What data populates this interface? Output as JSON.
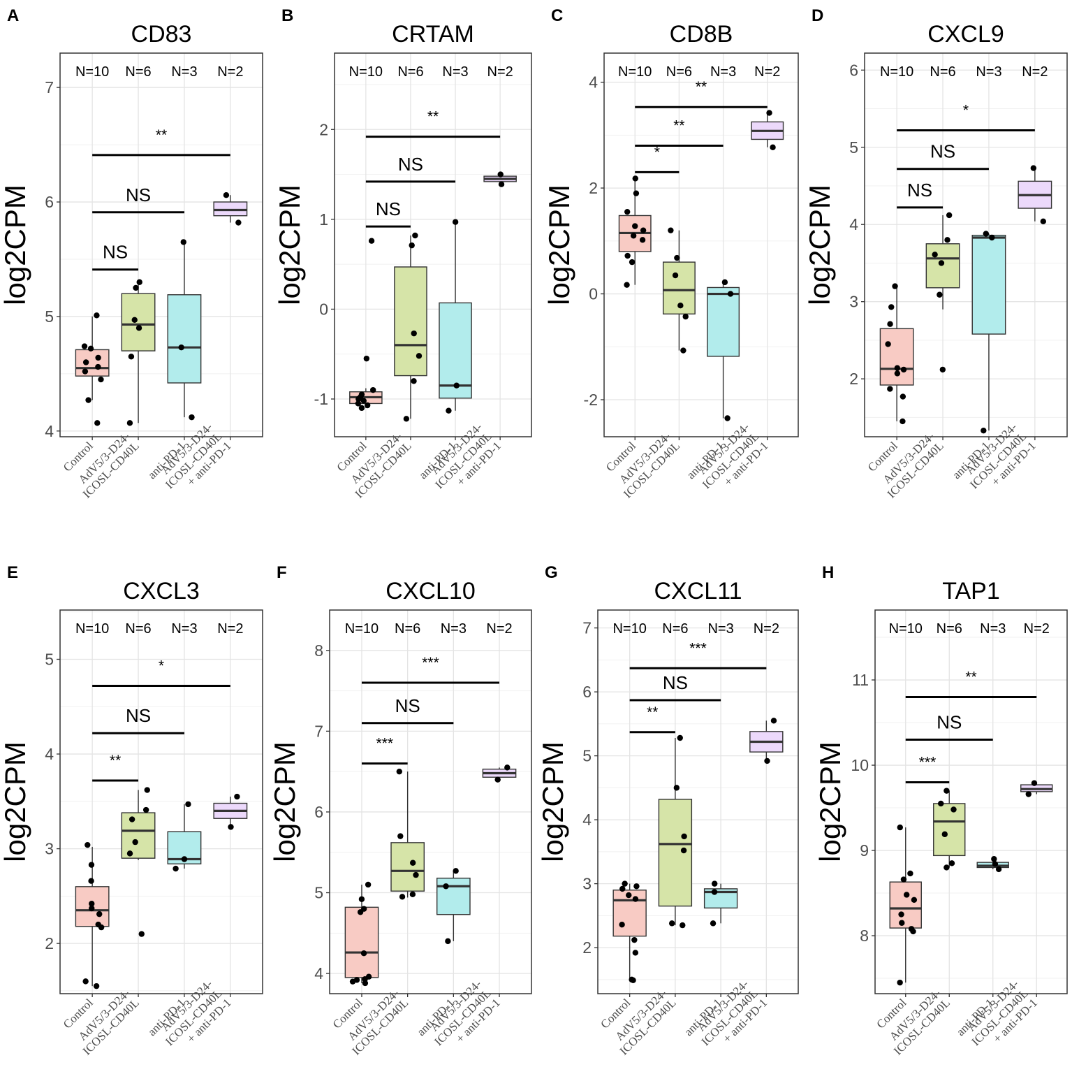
{
  "y_axis_label": "log2CPM",
  "groups": [
    "Control",
    "AdV5/3-D24-ICOSL-CD40L",
    "anti-PD-1",
    "AdV5/3-D24-ICOSL-CD40L + anti-PD-1"
  ],
  "group_label_lines": [
    [
      "Control"
    ],
    [
      "AdV5/3-D24-",
      "ICOSL-CD40L"
    ],
    [
      "anti-PD-1"
    ],
    [
      "AdV5/3-D24-",
      "ICOSL-CD40L",
      "+ anti-PD-1"
    ]
  ],
  "group_colors": [
    "#f8cbc4",
    "#d6e4a8",
    "#b2ecec",
    "#ecd9fb"
  ],
  "n_labels": [
    "N=10",
    "N=6",
    "N=3",
    "N=2"
  ],
  "chart_data": [
    {
      "type": "box",
      "panel_label": "A",
      "title": "CD83",
      "ylim": [
        3.95,
        7.3
      ],
      "yticks": [
        4,
        5,
        6,
        7
      ],
      "boxes": [
        {
          "q1": 4.48,
          "median": 4.55,
          "q3": 4.71,
          "wmin": 4.27,
          "wmax": 5.0
        },
        {
          "q1": 4.7,
          "median": 4.93,
          "q3": 5.2,
          "wmin": 4.07,
          "wmax": 5.3
        },
        {
          "q1": 4.42,
          "median": 4.73,
          "q3": 5.19,
          "wmin": 4.12,
          "wmax": 5.65
        },
        {
          "q1": 5.88,
          "median": 5.93,
          "q3": 6.0,
          "wmin": 5.82,
          "wmax": 6.06
        }
      ],
      "points": [
        [
          5.01,
          4.74,
          4.72,
          4.64,
          4.6,
          4.56,
          4.52,
          4.45,
          4.27,
          4.07
        ],
        [
          5.3,
          5.25,
          4.97,
          4.9,
          4.65,
          4.07
        ],
        [
          5.65,
          4.73,
          4.12
        ],
        [
          6.06,
          5.82
        ]
      ],
      "comparisons": [
        {
          "from": 0,
          "to": 1,
          "y": 5.41,
          "label": "NS"
        },
        {
          "from": 0,
          "to": 2,
          "y": 5.91,
          "label": "NS"
        },
        {
          "from": 0,
          "to": 3,
          "y": 6.41,
          "label": "**"
        }
      ]
    },
    {
      "type": "box",
      "panel_label": "B",
      "title": "CRTAM",
      "ylim": [
        -1.42,
        2.85
      ],
      "yticks": [
        -1,
        0,
        1,
        2
      ],
      "boxes": [
        {
          "q1": -1.05,
          "median": -0.98,
          "q3": -0.92,
          "wmin": -1.1,
          "wmax": -0.88
        },
        {
          "q1": -0.74,
          "median": -0.4,
          "q3": 0.47,
          "wmin": -1.22,
          "wmax": 0.82
        },
        {
          "q1": -0.99,
          "median": -0.85,
          "q3": 0.07,
          "wmin": -1.13,
          "wmax": 0.97
        },
        {
          "q1": 1.42,
          "median": 1.45,
          "q3": 1.48,
          "wmin": 1.39,
          "wmax": 1.5
        }
      ],
      "points": [
        [
          0.76,
          -0.55,
          -0.9,
          -0.95,
          -0.98,
          -1.0,
          -1.02,
          -1.05,
          -1.07,
          -1.1
        ],
        [
          0.82,
          0.71,
          -0.27,
          -0.52,
          -0.8,
          -1.22
        ],
        [
          0.97,
          -0.85,
          -1.13
        ],
        [
          1.5,
          1.39
        ]
      ],
      "comparisons": [
        {
          "from": 0,
          "to": 1,
          "y": 0.92,
          "label": "NS"
        },
        {
          "from": 0,
          "to": 2,
          "y": 1.42,
          "label": "NS"
        },
        {
          "from": 0,
          "to": 3,
          "y": 1.92,
          "label": "**"
        }
      ]
    },
    {
      "type": "box",
      "panel_label": "C",
      "title": "CD8B",
      "ylim": [
        -2.7,
        4.55
      ],
      "yticks": [
        -2,
        0,
        2,
        4
      ],
      "boxes": [
        {
          "q1": 0.8,
          "median": 1.15,
          "q3": 1.48,
          "wmin": 0.17,
          "wmax": 2.18
        },
        {
          "q1": -0.38,
          "median": 0.07,
          "q3": 0.6,
          "wmin": -1.07,
          "wmax": 1.2
        },
        {
          "q1": -1.18,
          "median": 0.0,
          "q3": 0.12,
          "wmin": -2.35,
          "wmax": 0.22
        },
        {
          "q1": 2.92,
          "median": 3.08,
          "q3": 3.25,
          "wmin": 2.77,
          "wmax": 3.42
        }
      ],
      "points": [
        [
          2.18,
          1.9,
          1.55,
          1.28,
          1.2,
          1.1,
          1.02,
          0.72,
          0.6,
          0.17
        ],
        [
          1.2,
          0.68,
          0.35,
          -0.22,
          -0.43,
          -1.07
        ],
        [
          0.22,
          0.0,
          -2.35
        ],
        [
          3.42,
          2.77
        ]
      ],
      "comparisons": [
        {
          "from": 0,
          "to": 1,
          "y": 2.3,
          "label": "*"
        },
        {
          "from": 0,
          "to": 2,
          "y": 2.8,
          "label": "**"
        },
        {
          "from": 0,
          "to": 3,
          "y": 3.53,
          "label": "**"
        }
      ]
    },
    {
      "type": "box",
      "panel_label": "D",
      "title": "CXCL9",
      "ylim": [
        1.25,
        6.22
      ],
      "yticks": [
        2,
        3,
        4,
        5,
        6
      ],
      "boxes": [
        {
          "q1": 1.92,
          "median": 2.13,
          "q3": 2.65,
          "wmin": 1.45,
          "wmax": 3.2
        },
        {
          "q1": 3.18,
          "median": 3.56,
          "q3": 3.75,
          "wmin": 2.9,
          "wmax": 4.12
        },
        {
          "q1": 2.58,
          "median": 3.83,
          "q3": 3.86,
          "wmin": 1.33,
          "wmax": 3.88
        },
        {
          "q1": 4.21,
          "median": 4.38,
          "q3": 4.56,
          "wmin": 4.04,
          "wmax": 4.73
        }
      ],
      "points": [
        [
          3.2,
          2.93,
          2.71,
          2.45,
          2.14,
          2.12,
          2.07,
          1.87,
          1.77,
          1.45
        ],
        [
          4.12,
          3.8,
          3.61,
          3.5,
          3.09,
          2.12
        ],
        [
          3.88,
          3.83,
          1.33
        ],
        [
          4.73,
          4.04
        ]
      ],
      "comparisons": [
        {
          "from": 0,
          "to": 1,
          "y": 4.22,
          "label": "NS"
        },
        {
          "from": 0,
          "to": 2,
          "y": 4.72,
          "label": "NS"
        },
        {
          "from": 0,
          "to": 3,
          "y": 5.22,
          "label": "*"
        }
      ]
    },
    {
      "type": "box",
      "panel_label": "E",
      "title": "CXCL3",
      "ylim": [
        1.47,
        5.52
      ],
      "yticks": [
        2,
        3,
        4,
        5
      ],
      "boxes": [
        {
          "q1": 2.18,
          "median": 2.35,
          "q3": 2.6,
          "wmin": 1.55,
          "wmax": 3.02
        },
        {
          "q1": 2.9,
          "median": 3.19,
          "q3": 3.38,
          "wmin": 2.88,
          "wmax": 3.62
        },
        {
          "q1": 2.84,
          "median": 2.89,
          "q3": 3.18,
          "wmin": 2.79,
          "wmax": 3.47
        },
        {
          "q1": 3.32,
          "median": 3.4,
          "q3": 3.48,
          "wmin": 3.22,
          "wmax": 3.55
        }
      ],
      "points": [
        [
          3.04,
          2.83,
          2.66,
          2.42,
          2.37,
          2.31,
          2.2,
          2.17,
          1.6,
          1.55
        ],
        [
          3.62,
          3.41,
          3.31,
          3.07,
          2.95,
          2.1
        ],
        [
          3.47,
          2.89,
          2.79
        ],
        [
          3.55,
          3.23
        ]
      ],
      "comparisons": [
        {
          "from": 0,
          "to": 1,
          "y": 3.72,
          "label": "**"
        },
        {
          "from": 0,
          "to": 2,
          "y": 4.22,
          "label": "NS"
        },
        {
          "from": 0,
          "to": 3,
          "y": 4.72,
          "label": "*"
        }
      ]
    },
    {
      "type": "box",
      "panel_label": "F",
      "title": "CXCL10",
      "ylim": [
        3.75,
        8.5
      ],
      "yticks": [
        4,
        5,
        6,
        7,
        8
      ],
      "boxes": [
        {
          "q1": 3.95,
          "median": 4.26,
          "q3": 4.82,
          "wmin": 3.88,
          "wmax": 5.1
        },
        {
          "q1": 5.02,
          "median": 5.27,
          "q3": 5.62,
          "wmin": 4.94,
          "wmax": 6.5
        },
        {
          "q1": 4.73,
          "median": 5.08,
          "q3": 5.18,
          "wmin": 4.4,
          "wmax": 5.27
        },
        {
          "q1": 6.43,
          "median": 6.48,
          "q3": 6.53,
          "wmin": 6.4,
          "wmax": 6.55
        }
      ],
      "points": [
        [
          5.1,
          4.92,
          4.8,
          4.76,
          4.25,
          3.96,
          3.93,
          3.92,
          3.9,
          3.88
        ],
        [
          6.5,
          5.7,
          5.37,
          5.22,
          4.98,
          4.95
        ],
        [
          5.27,
          5.08,
          4.4
        ],
        [
          6.55,
          6.4
        ]
      ],
      "comparisons": [
        {
          "from": 0,
          "to": 1,
          "y": 6.6,
          "label": "***"
        },
        {
          "from": 0,
          "to": 2,
          "y": 7.1,
          "label": "NS"
        },
        {
          "from": 0,
          "to": 3,
          "y": 7.6,
          "label": "***"
        }
      ]
    },
    {
      "type": "box",
      "panel_label": "G",
      "title": "CXCL11",
      "ylim": [
        1.28,
        7.28
      ],
      "yticks": [
        2,
        3,
        4,
        5,
        6,
        7
      ],
      "boxes": [
        {
          "q1": 2.18,
          "median": 2.74,
          "q3": 2.9,
          "wmin": 1.5,
          "wmax": 3.0
        },
        {
          "q1": 2.65,
          "median": 3.62,
          "q3": 4.32,
          "wmin": 2.35,
          "wmax": 5.28
        },
        {
          "q1": 2.62,
          "median": 2.87,
          "q3": 2.92,
          "wmin": 2.38,
          "wmax": 3.0
        },
        {
          "q1": 5.06,
          "median": 5.22,
          "q3": 5.38,
          "wmin": 4.92,
          "wmax": 5.55
        }
      ],
      "points": [
        [
          3.0,
          2.96,
          2.92,
          2.82,
          2.76,
          2.36,
          2.12,
          1.92,
          1.5,
          1.49
        ],
        [
          5.28,
          4.5,
          3.74,
          3.52,
          2.38,
          2.35
        ],
        [
          3.0,
          2.87,
          2.38
        ],
        [
          5.55,
          4.92
        ]
      ],
      "comparisons": [
        {
          "from": 0,
          "to": 1,
          "y": 5.37,
          "label": "**"
        },
        {
          "from": 0,
          "to": 2,
          "y": 5.87,
          "label": "NS"
        },
        {
          "from": 0,
          "to": 3,
          "y": 6.37,
          "label": "***"
        }
      ]
    },
    {
      "type": "box",
      "panel_label": "H",
      "title": "TAP1",
      "ylim": [
        7.32,
        11.82
      ],
      "yticks": [
        8,
        9,
        10,
        11
      ],
      "boxes": [
        {
          "q1": 8.09,
          "median": 8.32,
          "q3": 8.63,
          "wmin": 7.45,
          "wmax": 9.27
        },
        {
          "q1": 8.94,
          "median": 9.34,
          "q3": 9.55,
          "wmin": 8.8,
          "wmax": 9.7
        },
        {
          "q1": 8.8,
          "median": 8.82,
          "q3": 8.86,
          "wmin": 8.78,
          "wmax": 8.9
        },
        {
          "q1": 9.69,
          "median": 9.72,
          "q3": 9.77,
          "wmin": 9.66,
          "wmax": 9.79
        }
      ],
      "points": [
        [
          9.27,
          8.73,
          8.66,
          8.48,
          8.42,
          8.25,
          8.15,
          8.08,
          8.05,
          7.45
        ],
        [
          9.7,
          9.55,
          9.48,
          9.19,
          8.85,
          8.8
        ],
        [
          8.9,
          8.84,
          8.78
        ],
        [
          9.79,
          9.66
        ]
      ],
      "comparisons": [
        {
          "from": 0,
          "to": 1,
          "y": 9.8,
          "label": "***"
        },
        {
          "from": 0,
          "to": 2,
          "y": 10.3,
          "label": "NS"
        },
        {
          "from": 0,
          "to": 3,
          "y": 10.8,
          "label": "**"
        }
      ]
    }
  ]
}
